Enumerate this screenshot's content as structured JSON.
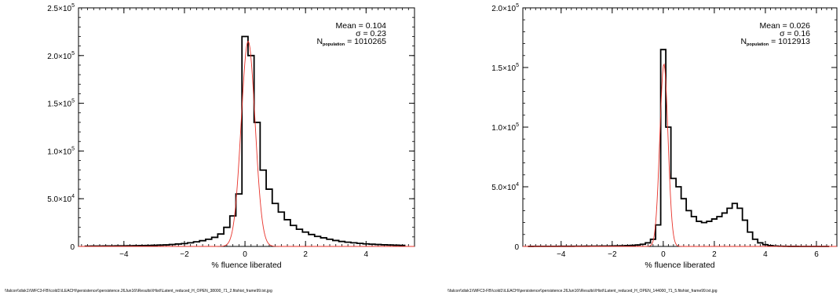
{
  "chart_data": [
    {
      "type": "histogram",
      "xlabel": "% fluence liberated",
      "ylabel": "",
      "xlim": [
        -5.5,
        5.6
      ],
      "ylim": [
        0,
        250000
      ],
      "xticks": [
        -4,
        -2,
        0,
        2,
        4
      ],
      "xtick_labels": [
        "−4",
        "−2",
        "0",
        "2",
        "4"
      ],
      "yticks": [
        0,
        50000,
        100000,
        150000,
        200000,
        250000
      ],
      "ytick_labels": [
        {
          "m": "0",
          "e": ""
        },
        {
          "m": "5.0×10",
          "e": "4"
        },
        {
          "m": "1.0×10",
          "e": "5"
        },
        {
          "m": "1.5×10",
          "e": "5"
        },
        {
          "m": "2.0×10",
          "e": "5"
        },
        {
          "m": "2.5×10",
          "e": "5"
        }
      ],
      "bin_width": 0.2,
      "series": [
        {
          "style": "histogram",
          "color": "#000000",
          "bins": [
            [
              -5.2,
              300
            ],
            [
              -5.0,
              350
            ],
            [
              -4.8,
              400
            ],
            [
              -4.6,
              450
            ],
            [
              -4.4,
              500
            ],
            [
              -4.2,
              550
            ],
            [
              -4.0,
              600
            ],
            [
              -3.8,
              700
            ],
            [
              -3.6,
              800
            ],
            [
              -3.4,
              900
            ],
            [
              -3.2,
              1000
            ],
            [
              -3.0,
              1200
            ],
            [
              -2.8,
              1400
            ],
            [
              -2.6,
              1600
            ],
            [
              -2.4,
              2000
            ],
            [
              -2.2,
              2500
            ],
            [
              -2.0,
              3000
            ],
            [
              -1.8,
              3800
            ],
            [
              -1.6,
              4800
            ],
            [
              -1.4,
              6000
            ],
            [
              -1.2,
              7500
            ],
            [
              -1.0,
              9500
            ],
            [
              -0.8,
              13000
            ],
            [
              -0.6,
              20000
            ],
            [
              -0.4,
              32000
            ],
            [
              -0.2,
              55000
            ],
            [
              0.0,
              220000
            ],
            [
              0.2,
              200000
            ],
            [
              0.4,
              130000
            ],
            [
              0.6,
              80000
            ],
            [
              0.8,
              60000
            ],
            [
              1.0,
              45000
            ],
            [
              1.2,
              36000
            ],
            [
              1.4,
              28000
            ],
            [
              1.6,
              22000
            ],
            [
              1.8,
              18000
            ],
            [
              2.0,
              15000
            ],
            [
              2.2,
              12500
            ],
            [
              2.4,
              10500
            ],
            [
              2.6,
              9000
            ],
            [
              2.8,
              7500
            ],
            [
              3.0,
              6200
            ],
            [
              3.2,
              5200
            ],
            [
              3.4,
              4400
            ],
            [
              3.6,
              3800
            ],
            [
              3.8,
              3200
            ],
            [
              4.0,
              2700
            ],
            [
              4.2,
              2300
            ],
            [
              4.4,
              2000
            ],
            [
              4.6,
              1700
            ],
            [
              4.8,
              1500
            ],
            [
              5.0,
              1300
            ],
            [
              5.2,
              1100
            ]
          ]
        },
        {
          "style": "gaussian-fit",
          "color": "#e8322a",
          "amplitude": 215000,
          "mean": 0.104,
          "sigma": 0.23
        }
      ],
      "annotation": {
        "mean_label": "Mean",
        "mean_value": "0.104",
        "sigma_label": "σ",
        "sigma_value": "0.23",
        "n_label": "N",
        "n_subscript": "population",
        "n_value": "1010265"
      },
      "footer": "\\\\falcon\\\\disk1\\\\WFC3-FB\\\\cold1\\\\LEACH\\\\persistence\\\\persistence.26Jun16\\\\Results\\\\Hist\\\\Latent_reduced_H_OPEN_38000_71_2.fitshist_frame99.txt.jpg"
    },
    {
      "type": "histogram",
      "xlabel": "% fluence liberated",
      "ylabel": "",
      "xlim": [
        -5.5,
        6.8
      ],
      "ylim": [
        0,
        200000
      ],
      "xticks": [
        -4,
        -2,
        0,
        2,
        4,
        6
      ],
      "xtick_labels": [
        "−4",
        "−2",
        "0",
        "2",
        "4",
        "6"
      ],
      "yticks": [
        0,
        50000,
        100000,
        150000,
        200000
      ],
      "ytick_labels": [
        {
          "m": "0",
          "e": ""
        },
        {
          "m": "5.0×10",
          "e": "4"
        },
        {
          "m": "1.0×10",
          "e": "5"
        },
        {
          "m": "1.5×10",
          "e": "5"
        },
        {
          "m": "2.0×10",
          "e": "5"
        }
      ],
      "bin_width": 0.2,
      "series": [
        {
          "style": "histogram",
          "color": "#000000",
          "bins": [
            [
              -5.2,
              50
            ],
            [
              -5.0,
              60
            ],
            [
              -4.8,
              70
            ],
            [
              -4.6,
              80
            ],
            [
              -4.4,
              90
            ],
            [
              -4.2,
              100
            ],
            [
              -4.0,
              110
            ],
            [
              -3.8,
              120
            ],
            [
              -3.6,
              140
            ],
            [
              -3.4,
              160
            ],
            [
              -3.2,
              180
            ],
            [
              -3.0,
              200
            ],
            [
              -2.8,
              230
            ],
            [
              -2.6,
              260
            ],
            [
              -2.4,
              300
            ],
            [
              -2.2,
              350
            ],
            [
              -2.0,
              400
            ],
            [
              -1.8,
              480
            ],
            [
              -1.6,
              580
            ],
            [
              -1.4,
              700
            ],
            [
              -1.2,
              900
            ],
            [
              -1.0,
              1200
            ],
            [
              -0.8,
              1800
            ],
            [
              -0.6,
              3000
            ],
            [
              -0.4,
              6000
            ],
            [
              -0.2,
              18000
            ],
            [
              0.0,
              165000
            ],
            [
              0.2,
              100000
            ],
            [
              0.4,
              57000
            ],
            [
              0.6,
              50000
            ],
            [
              0.8,
              40000
            ],
            [
              1.0,
              30000
            ],
            [
              1.2,
              25000
            ],
            [
              1.4,
              21000
            ],
            [
              1.6,
              20000
            ],
            [
              1.8,
              21000
            ],
            [
              2.0,
              23000
            ],
            [
              2.2,
              25000
            ],
            [
              2.4,
              28000
            ],
            [
              2.6,
              32000
            ],
            [
              2.8,
              36000
            ],
            [
              3.0,
              32000
            ],
            [
              3.2,
              22000
            ],
            [
              3.4,
              12000
            ],
            [
              3.6,
              6000
            ],
            [
              3.8,
              3000
            ],
            [
              4.0,
              1500
            ],
            [
              4.2,
              700
            ],
            [
              4.4,
              300
            ],
            [
              4.6,
              150
            ],
            [
              4.8,
              80
            ],
            [
              5.0,
              50
            ],
            [
              5.2,
              30
            ],
            [
              5.4,
              20
            ],
            [
              5.6,
              15
            ],
            [
              5.8,
              10
            ],
            [
              6.0,
              8
            ],
            [
              6.2,
              5
            ],
            [
              6.4,
              3
            ]
          ]
        },
        {
          "style": "gaussian-fit",
          "color": "#e8322a",
          "amplitude": 153000,
          "mean": 0.026,
          "sigma": 0.16
        }
      ],
      "annotation": {
        "mean_label": "Mean",
        "mean_value": "0.026",
        "sigma_label": "σ",
        "sigma_value": "0.16",
        "n_label": "N",
        "n_subscript": "population",
        "n_value": "1012913"
      },
      "footer": "\\\\falcon\\\\disk1\\\\WFC3-FB\\\\cold1\\\\LEACH\\\\persistence\\\\persistence.26Jun16\\\\Results\\\\Hist\\\\Latent_reduced_H_OPEN_144000_71_5.fitshist_frame99.txt.jpg"
    }
  ]
}
